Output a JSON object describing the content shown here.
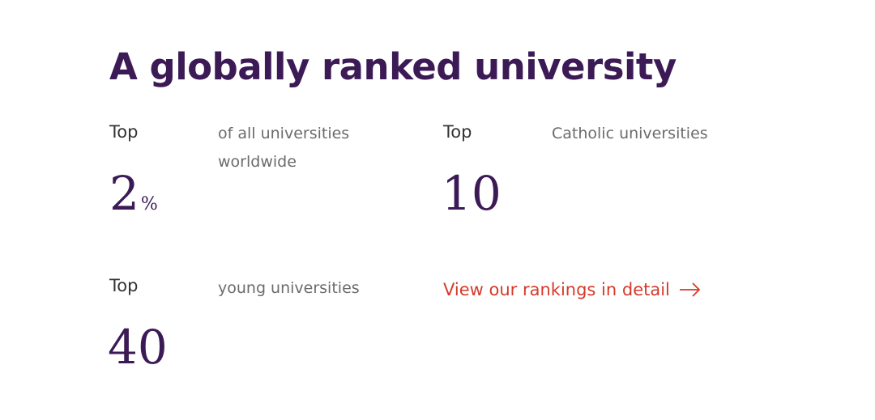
{
  "title": "A globally ranked university",
  "stats": [
    {
      "prefix": "Top",
      "number": "2",
      "unit": "%",
      "description": "of all universities worldwide"
    },
    {
      "prefix": "Top",
      "number": "10",
      "description": "Catholic universities"
    },
    {
      "prefix": "Top",
      "number": "40",
      "description": "young universities"
    }
  ],
  "link": "View our rankings in detail"
}
